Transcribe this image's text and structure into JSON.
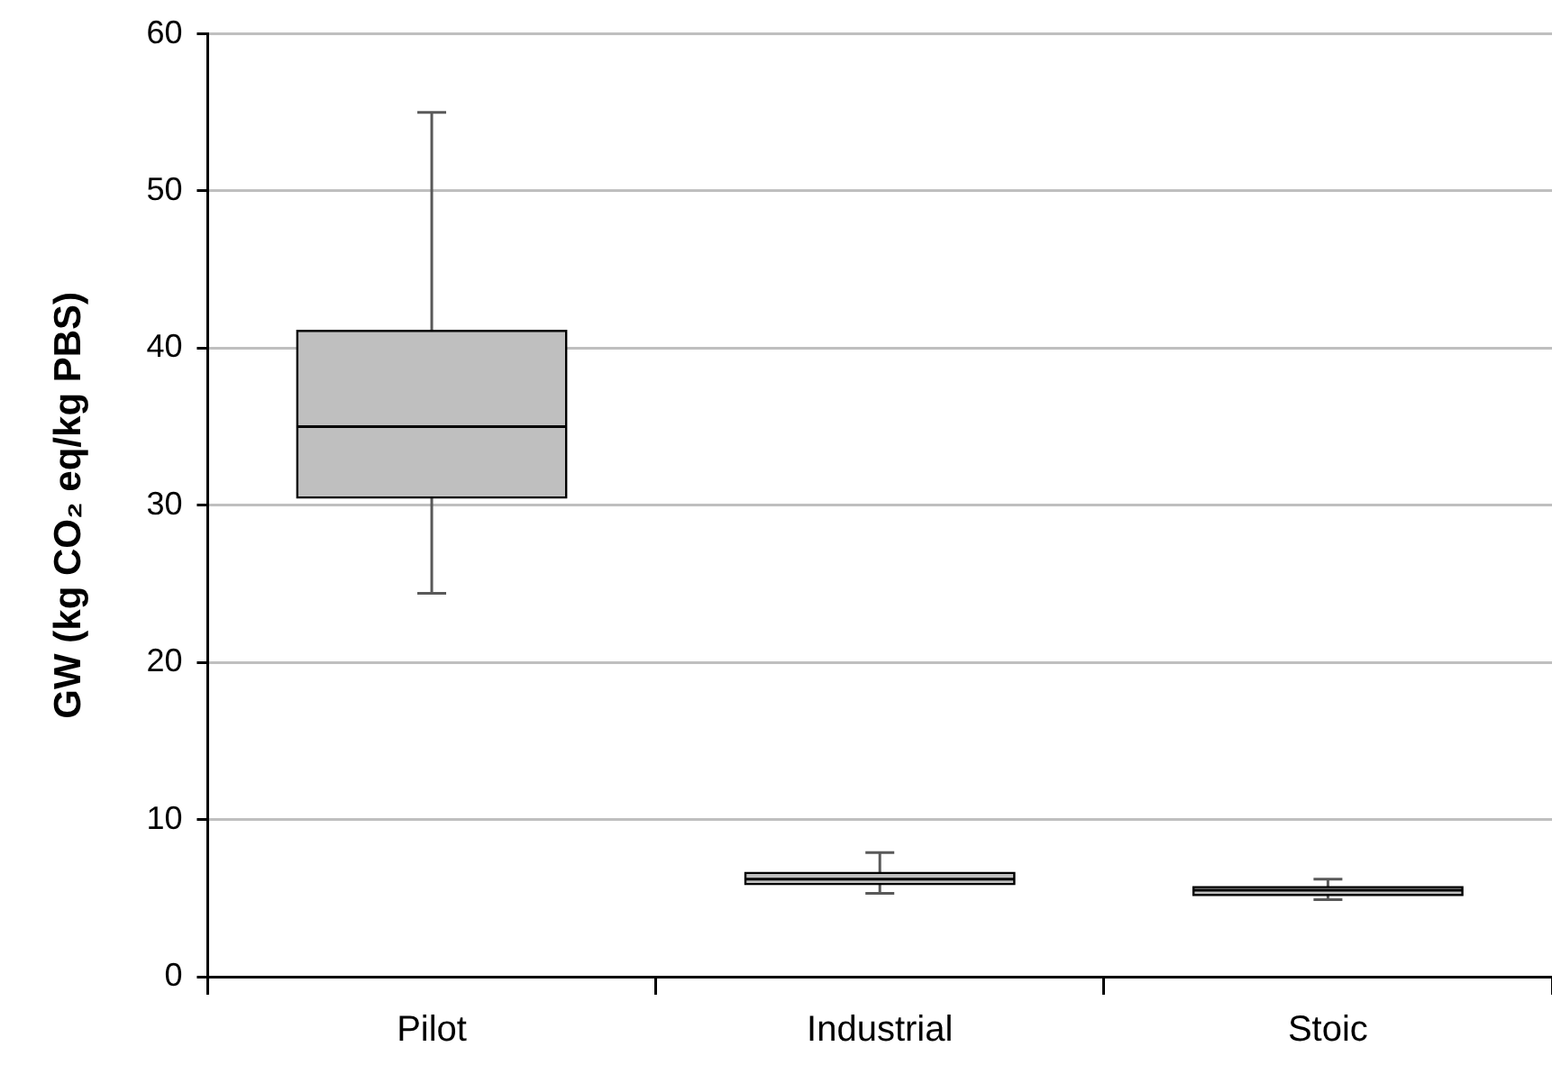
{
  "chart_data": {
    "type": "box",
    "ylabel": "GW (kg CO₂ eq/kg PBS)",
    "categories": [
      "Pilot",
      "Industrial",
      "Stoic"
    ],
    "boxes": [
      {
        "low": 24.4,
        "q1": 30.5,
        "median": 35,
        "q3": 41.1,
        "high": 55
      },
      {
        "low": 5.3,
        "q1": 5.9,
        "median": 6.2,
        "q3": 6.6,
        "high": 7.9
      },
      {
        "low": 4.9,
        "q1": 5.2,
        "median": 5.5,
        "q3": 5.7,
        "high": 6.2
      }
    ],
    "color": "#bfbfbf",
    "ylim": [
      0,
      60
    ],
    "yticks": [
      0,
      10,
      20,
      30,
      40,
      50,
      60
    ],
    "grid": "y"
  }
}
